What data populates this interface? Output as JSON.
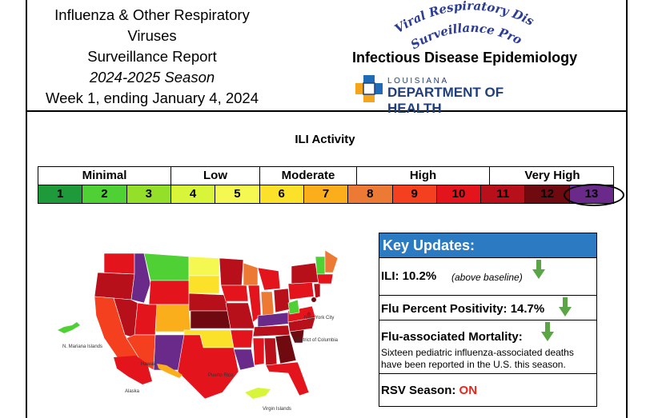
{
  "report": {
    "title_line1": "Influenza & Other Respiratory Viruses",
    "title_line2": "Surveillance Report",
    "season": "2024-2025 Season",
    "week": "Week 1, ending January 4, 2024"
  },
  "program": {
    "arc_text": "Viral Respiratory Disease Surveillance Program",
    "unit": "Infectious Disease Epidemiology",
    "state": "LOUISIANA",
    "dept": "DEPARTMENT OF HEALTH"
  },
  "ili": {
    "title": "ILI Activity",
    "categories": [
      "Minimal",
      "Low",
      "Moderate",
      "High",
      "Very High"
    ],
    "levels": [
      {
        "label": "1",
        "color": "#1e9a3a"
      },
      {
        "label": "2",
        "color": "#4fd136"
      },
      {
        "label": "3",
        "color": "#93df2a"
      },
      {
        "label": "4",
        "color": "#d9f53a"
      },
      {
        "label": "5",
        "color": "#f6f852"
      },
      {
        "label": "6",
        "color": "#fbe12a"
      },
      {
        "label": "7",
        "color": "#fbae1c"
      },
      {
        "label": "8",
        "color": "#ec7a35"
      },
      {
        "label": "9",
        "color": "#f4401f"
      },
      {
        "label": "10",
        "color": "#e3141b"
      },
      {
        "label": "11",
        "color": "#b8101a"
      },
      {
        "label": "12",
        "color": "#6e0a10"
      },
      {
        "label": "13",
        "color": "#6a2a8a"
      }
    ],
    "current_level": 13
  },
  "map": {
    "labels": {
      "mariana": "N. Mariana Islands",
      "hawaii": "Hawaii",
      "alaska": "Alaska",
      "puerto_rico": "Puerto Rico",
      "virgin": "Virgin Islands",
      "nyc": "New York City",
      "dc": "District of Columbia"
    }
  },
  "key_updates": {
    "heading": "Key Updates:",
    "ili_label": "ILI: 10.2%",
    "ili_note": "(above baseline)",
    "positivity_label": "Flu Percent Positivity: 14.7%",
    "mortality_label": "Flu-associated Mortality:",
    "mortality_desc": "Sixteen pediatric influenza-associated deaths have been reported in the U.S. this season.",
    "rsv_label": "RSV Season:",
    "rsv_value": "ON",
    "accent": "#2c7bc2",
    "arrow_color": "#5aa545"
  }
}
